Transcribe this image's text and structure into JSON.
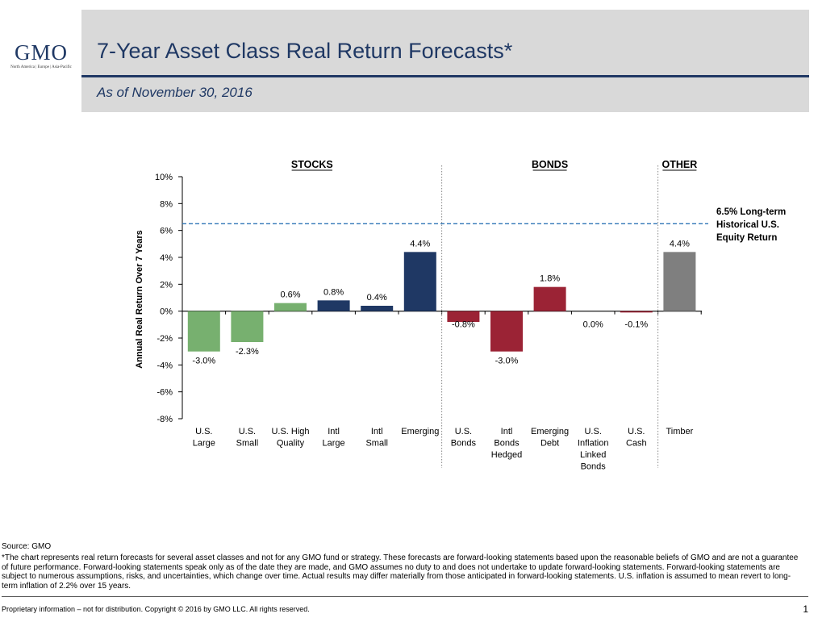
{
  "logo": {
    "name": "GMO",
    "regions": "North America | Europe | Asia-Pacific"
  },
  "header": {
    "title": "7-Year Asset Class Real Return Forecasts*",
    "as_of": "As of November 30, 2016"
  },
  "chart_data": {
    "type": "bar",
    "ylabel": "Annual Real Return Over 7 Years",
    "ylim": [
      -8,
      10
    ],
    "yticks": [
      -8,
      -6,
      -4,
      -2,
      0,
      2,
      4,
      6,
      8,
      10
    ],
    "ytick_labels": [
      "-8%",
      "-6%",
      "-4%",
      "-2%",
      "0%",
      "2%",
      "4%",
      "6%",
      "8%",
      "10%"
    ],
    "groups": [
      "STOCKS",
      "BONDS",
      "OTHER"
    ],
    "categories": [
      {
        "label": "U.S.\nLarge",
        "value": -3.0,
        "value_label": "-3.0%",
        "group": "STOCKS",
        "color": "#77b06f"
      },
      {
        "label": "U.S.\nSmall",
        "value": -2.3,
        "value_label": "-2.3%",
        "group": "STOCKS",
        "color": "#77b06f"
      },
      {
        "label": "U.S. High\nQuality",
        "value": 0.6,
        "value_label": "0.6%",
        "group": "STOCKS",
        "color": "#77b06f"
      },
      {
        "label": "Intl\nLarge",
        "value": 0.8,
        "value_label": "0.8%",
        "group": "STOCKS",
        "color": "#1f3864"
      },
      {
        "label": "Intl\nSmall",
        "value": 0.4,
        "value_label": "0.4%",
        "group": "STOCKS",
        "color": "#1f3864"
      },
      {
        "label": "Emerging",
        "value": 4.4,
        "value_label": "4.4%",
        "group": "STOCKS",
        "color": "#1f3864"
      },
      {
        "label": "U.S.\nBonds",
        "value": -0.8,
        "value_label": "-0.8%",
        "group": "BONDS",
        "color": "#9b2335"
      },
      {
        "label": "Intl\nBonds\nHedged",
        "value": -3.0,
        "value_label": "-3.0%",
        "group": "BONDS",
        "color": "#9b2335"
      },
      {
        "label": "Emerging\nDebt",
        "value": 1.8,
        "value_label": "1.8%",
        "group": "BONDS",
        "color": "#9b2335"
      },
      {
        "label": "U.S.\nInflation\nLinked\nBonds",
        "value": 0.0,
        "value_label": "0.0%",
        "group": "BONDS",
        "color": "#9b2335"
      },
      {
        "label": "U.S.\nCash",
        "value": -0.1,
        "value_label": "-0.1%",
        "group": "BONDS",
        "color": "#9b2335"
      },
      {
        "label": "Timber",
        "value": 4.4,
        "value_label": "4.4%",
        "group": "OTHER",
        "color": "#7f7f7f"
      }
    ],
    "reference_line": {
      "value": 6.5,
      "label": "6.5% Long-term\nHistorical U.S.\nEquity Return",
      "color": "#2e75b6",
      "style": "dashed"
    }
  },
  "footer": {
    "source": "Source: GMO",
    "note": "*The chart represents real return forecasts for several asset classes and not for any GMO fund or strategy. These forecasts are forward-looking statements based upon the reasonable beliefs of GMO and are not a guarantee of future performance. Forward-looking statements speak only as of the date they are made, and GMO assumes no duty to and does not undertake to update forward-looking statements. Forward-looking statements are subject to numerous assumptions, risks, and uncertainties, which change over time. Actual results may differ materially from those anticipated in forward-looking statements. U.S. inflation is assumed to mean revert to long-term inflation of 2.2% over 15 years.",
    "copyright": "Proprietary information – not for distribution. Copyright © 2016 by GMO LLC. All rights reserved.",
    "page_number": "1"
  }
}
